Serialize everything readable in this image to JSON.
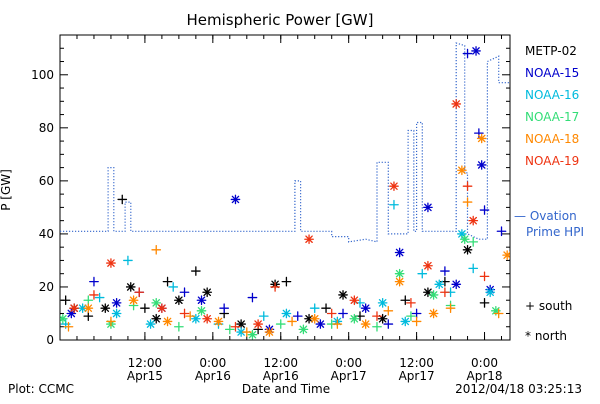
{
  "chart_data": {
    "type": "scatter",
    "title": "Hemispheric Power [GW]",
    "ylabel": "P [GW]",
    "xlabel": "Date and Time",
    "ylim": [
      0,
      115
    ],
    "xlim": [
      "2012-04-14 21:00",
      "2012-04-18 04:30"
    ],
    "grid": false,
    "y_ticks": [
      0,
      20,
      40,
      60,
      80,
      100
    ],
    "x_ticks": [
      {
        "time": "2012-04-15 12:00",
        "line1": "12:00",
        "line2": "Apr15"
      },
      {
        "time": "2012-04-16 00:00",
        "line1": "0:00",
        "line2": "Apr16"
      },
      {
        "time": "2012-04-16 12:00",
        "line1": "12:00",
        "line2": "Apr16"
      },
      {
        "time": "2012-04-17 00:00",
        "line1": "0:00",
        "line2": "Apr17"
      },
      {
        "time": "2012-04-17 12:00",
        "line1": "12:00",
        "line2": "Apr17"
      },
      {
        "time": "2012-04-18 00:00",
        "line1": "0:00",
        "line2": "Apr18"
      }
    ],
    "legend_position": "right",
    "series": [
      {
        "name": "METP-02",
        "color": "#000000",
        "points": [
          [
            "2012-04-14 22:00",
            15
          ],
          [
            "2012-04-14 23:30",
            12
          ],
          [
            "2012-04-15 02:00",
            9
          ],
          [
            "2012-04-15 05:00",
            12
          ],
          [
            "2012-04-15 08:00",
            53
          ],
          [
            "2012-04-15 09:30",
            20
          ],
          [
            "2012-04-15 12:00",
            12
          ],
          [
            "2012-04-15 14:00",
            8
          ],
          [
            "2012-04-15 16:00",
            22
          ],
          [
            "2012-04-15 18:00",
            15
          ],
          [
            "2012-04-15 21:00",
            26
          ],
          [
            "2012-04-15 23:00",
            18
          ],
          [
            "2012-04-16 02:00",
            10
          ],
          [
            "2012-04-16 05:00",
            6
          ],
          [
            "2012-04-16 08:00",
            4
          ],
          [
            "2012-04-16 11:00",
            21
          ],
          [
            "2012-04-16 13:00",
            22
          ],
          [
            "2012-04-16 17:00",
            8
          ],
          [
            "2012-04-16 20:00",
            12
          ],
          [
            "2012-04-16 23:00",
            17
          ],
          [
            "2012-04-17 02:00",
            9
          ],
          [
            "2012-04-17 06:00",
            8
          ],
          [
            "2012-04-17 10:00",
            15
          ],
          [
            "2012-04-17 14:00",
            18
          ],
          [
            "2012-04-17 17:00",
            22
          ],
          [
            "2012-04-17 21:00",
            34
          ],
          [
            "2012-04-18 00:00",
            14
          ]
        ]
      },
      {
        "name": "NOAA-15",
        "color": "#0000cc",
        "points": [
          [
            "2012-04-14 23:00",
            10
          ],
          [
            "2012-04-15 03:00",
            22
          ],
          [
            "2012-04-15 07:00",
            14
          ],
          [
            "2012-04-15 11:00",
            18
          ],
          [
            "2012-04-15 15:00",
            12
          ],
          [
            "2012-04-15 19:00",
            18
          ],
          [
            "2012-04-15 22:00",
            15
          ],
          [
            "2012-04-16 02:00",
            12
          ],
          [
            "2012-04-16 04:00",
            53
          ],
          [
            "2012-04-16 07:00",
            16
          ],
          [
            "2012-04-16 10:00",
            4
          ],
          [
            "2012-04-16 15:00",
            9
          ],
          [
            "2012-04-16 19:00",
            6
          ],
          [
            "2012-04-16 23:00",
            10
          ],
          [
            "2012-04-17 03:00",
            12
          ],
          [
            "2012-04-17 07:00",
            6
          ],
          [
            "2012-04-17 09:00",
            33
          ],
          [
            "2012-04-17 12:00",
            10
          ],
          [
            "2012-04-17 14:00",
            50
          ],
          [
            "2012-04-17 17:00",
            26
          ],
          [
            "2012-04-17 19:00",
            21
          ],
          [
            "2012-04-17 21:00",
            108
          ],
          [
            "2012-04-17 22:30",
            109
          ],
          [
            "2012-04-17 23:00",
            78
          ],
          [
            "2012-04-17 23:30",
            66
          ],
          [
            "2012-04-18 00:00",
            49
          ],
          [
            "2012-04-18 01:00",
            19
          ],
          [
            "2012-04-18 03:00",
            41
          ]
        ]
      },
      {
        "name": "NOAA-16",
        "color": "#00bbdd",
        "points": [
          [
            "2012-04-14 22:00",
            6
          ],
          [
            "2012-04-15 01:00",
            12
          ],
          [
            "2012-04-15 04:00",
            16
          ],
          [
            "2012-04-15 07:00",
            10
          ],
          [
            "2012-04-15 09:00",
            30
          ],
          [
            "2012-04-15 13:00",
            6
          ],
          [
            "2012-04-15 17:00",
            20
          ],
          [
            "2012-04-15 21:00",
            8
          ],
          [
            "2012-04-16 01:00",
            6
          ],
          [
            "2012-04-16 05:00",
            3
          ],
          [
            "2012-04-16 09:00",
            9
          ],
          [
            "2012-04-16 13:00",
            10
          ],
          [
            "2012-04-16 18:00",
            12
          ],
          [
            "2012-04-16 22:00",
            7
          ],
          [
            "2012-04-17 02:00",
            14
          ],
          [
            "2012-04-17 06:00",
            14
          ],
          [
            "2012-04-17 08:00",
            51
          ],
          [
            "2012-04-17 10:00",
            7
          ],
          [
            "2012-04-17 13:00",
            25
          ],
          [
            "2012-04-17 16:00",
            21
          ],
          [
            "2012-04-17 18:00",
            18
          ],
          [
            "2012-04-17 20:00",
            40
          ],
          [
            "2012-04-17 22:00",
            27
          ],
          [
            "2012-04-18 01:00",
            18
          ]
        ]
      },
      {
        "name": "NOAA-17",
        "color": "#33dd77",
        "points": [
          [
            "2012-04-14 21:30",
            8
          ],
          [
            "2012-04-15 02:00",
            15
          ],
          [
            "2012-04-15 06:00",
            6
          ],
          [
            "2012-04-15 10:00",
            13
          ],
          [
            "2012-04-15 14:00",
            14
          ],
          [
            "2012-04-15 18:00",
            5
          ],
          [
            "2012-04-15 22:00",
            11
          ],
          [
            "2012-04-16 03:00",
            4
          ],
          [
            "2012-04-16 07:00",
            2
          ],
          [
            "2012-04-16 12:00",
            6
          ],
          [
            "2012-04-16 16:00",
            4
          ],
          [
            "2012-04-16 21:00",
            6
          ],
          [
            "2012-04-17 01:00",
            8
          ],
          [
            "2012-04-17 05:00",
            5
          ],
          [
            "2012-04-17 09:00",
            25
          ],
          [
            "2012-04-17 11:00",
            9
          ],
          [
            "2012-04-17 15:00",
            17
          ],
          [
            "2012-04-17 18:00",
            13
          ],
          [
            "2012-04-17 20:30",
            38
          ],
          [
            "2012-04-17 22:00",
            37
          ],
          [
            "2012-04-18 02:00",
            11
          ]
        ]
      },
      {
        "name": "NOAA-18",
        "color": "#ff8800",
        "points": [
          [
            "2012-04-14 22:30",
            5
          ],
          [
            "2012-04-15 02:00",
            12
          ],
          [
            "2012-04-15 06:00",
            7
          ],
          [
            "2012-04-15 10:00",
            15
          ],
          [
            "2012-04-15 14:00",
            34
          ],
          [
            "2012-04-15 16:00",
            7
          ],
          [
            "2012-04-15 20:00",
            9
          ],
          [
            "2012-04-16 01:00",
            7
          ],
          [
            "2012-04-16 06:00",
            3
          ],
          [
            "2012-04-16 10:00",
            3
          ],
          [
            "2012-04-16 14:00",
            7
          ],
          [
            "2012-04-16 18:00",
            8
          ],
          [
            "2012-04-16 22:00",
            6
          ],
          [
            "2012-04-17 03:00",
            6
          ],
          [
            "2012-04-17 07:00",
            11
          ],
          [
            "2012-04-17 09:00",
            22
          ],
          [
            "2012-04-17 12:00",
            7
          ],
          [
            "2012-04-17 15:00",
            10
          ],
          [
            "2012-04-17 18:00",
            12
          ],
          [
            "2012-04-17 20:00",
            64
          ],
          [
            "2012-04-17 21:00",
            52
          ],
          [
            "2012-04-17 23:30",
            76
          ],
          [
            "2012-04-18 02:30",
            10
          ],
          [
            "2012-04-18 04:00",
            32
          ]
        ]
      },
      {
        "name": "NOAA-19",
        "color": "#ee3311",
        "points": [
          [
            "2012-04-14 23:30",
            12
          ],
          [
            "2012-04-15 03:00",
            17
          ],
          [
            "2012-04-15 06:00",
            29
          ],
          [
            "2012-04-15 11:00",
            18
          ],
          [
            "2012-04-15 15:00",
            12
          ],
          [
            "2012-04-15 19:00",
            10
          ],
          [
            "2012-04-15 23:00",
            8
          ],
          [
            "2012-04-16 04:00",
            5
          ],
          [
            "2012-04-16 08:00",
            6
          ],
          [
            "2012-04-16 11:00",
            20
          ],
          [
            "2012-04-16 17:00",
            38
          ],
          [
            "2012-04-16 21:00",
            10
          ],
          [
            "2012-04-17 01:00",
            15
          ],
          [
            "2012-04-17 05:00",
            9
          ],
          [
            "2012-04-17 08:00",
            58
          ],
          [
            "2012-04-17 11:00",
            14
          ],
          [
            "2012-04-17 14:00",
            28
          ],
          [
            "2012-04-17 17:00",
            18
          ],
          [
            "2012-04-17 19:00",
            89
          ],
          [
            "2012-04-17 21:00",
            58
          ],
          [
            "2012-04-17 22:00",
            45
          ],
          [
            "2012-04-18 00:00",
            24
          ]
        ]
      }
    ],
    "ovation": {
      "name": "— Ovation Prime HPI",
      "color": "#3366cc",
      "points": [
        [
          "2012-04-14 21:00",
          41
        ],
        [
          "2012-04-15 05:30",
          41
        ],
        [
          "2012-04-15 05:30",
          65
        ],
        [
          "2012-04-15 06:30",
          65
        ],
        [
          "2012-04-15 06:30",
          41
        ],
        [
          "2012-04-15 08:30",
          41
        ],
        [
          "2012-04-15 08:30",
          52
        ],
        [
          "2012-04-15 09:30",
          52
        ],
        [
          "2012-04-15 09:30",
          41
        ],
        [
          "2012-04-16 14:30",
          41
        ],
        [
          "2012-04-16 14:30",
          60
        ],
        [
          "2012-04-16 15:30",
          60
        ],
        [
          "2012-04-16 15:30",
          41
        ],
        [
          "2012-04-16 21:00",
          41
        ],
        [
          "2012-04-16 21:00",
          39
        ],
        [
          "2012-04-17 00:00",
          39
        ],
        [
          "2012-04-17 00:00",
          37
        ],
        [
          "2012-04-17 03:00",
          38
        ],
        [
          "2012-04-17 05:00",
          37
        ],
        [
          "2012-04-17 05:00",
          67
        ],
        [
          "2012-04-17 07:00",
          67
        ],
        [
          "2012-04-17 07:00",
          40
        ],
        [
          "2012-04-17 10:30",
          40
        ],
        [
          "2012-04-17 10:30",
          79
        ],
        [
          "2012-04-17 11:30",
          79
        ],
        [
          "2012-04-17 11:30",
          41
        ],
        [
          "2012-04-17 12:00",
          41
        ],
        [
          "2012-04-17 12:00",
          82
        ],
        [
          "2012-04-17 13:00",
          82
        ],
        [
          "2012-04-17 13:00",
          41
        ],
        [
          "2012-04-17 19:00",
          41
        ],
        [
          "2012-04-17 19:00",
          112
        ],
        [
          "2012-04-17 20:30",
          111
        ],
        [
          "2012-04-17 20:30",
          63
        ],
        [
          "2012-04-17 21:00",
          63
        ],
        [
          "2012-04-17 21:00",
          40
        ],
        [
          "2012-04-17 23:00",
          38
        ],
        [
          "2012-04-18 00:30",
          38
        ],
        [
          "2012-04-18 00:30",
          105
        ],
        [
          "2012-04-18 02:30",
          107
        ],
        [
          "2012-04-18 02:30",
          97
        ],
        [
          "2012-04-18 04:30",
          97
        ]
      ]
    },
    "symbol_legend": [
      {
        "symbol": "+",
        "label": "south"
      },
      {
        "symbol": "*",
        "label": "north"
      }
    ]
  },
  "footer": {
    "plot_source": "Plot: CCMC",
    "timestamp": "2012/04/18 03:25:13"
  }
}
